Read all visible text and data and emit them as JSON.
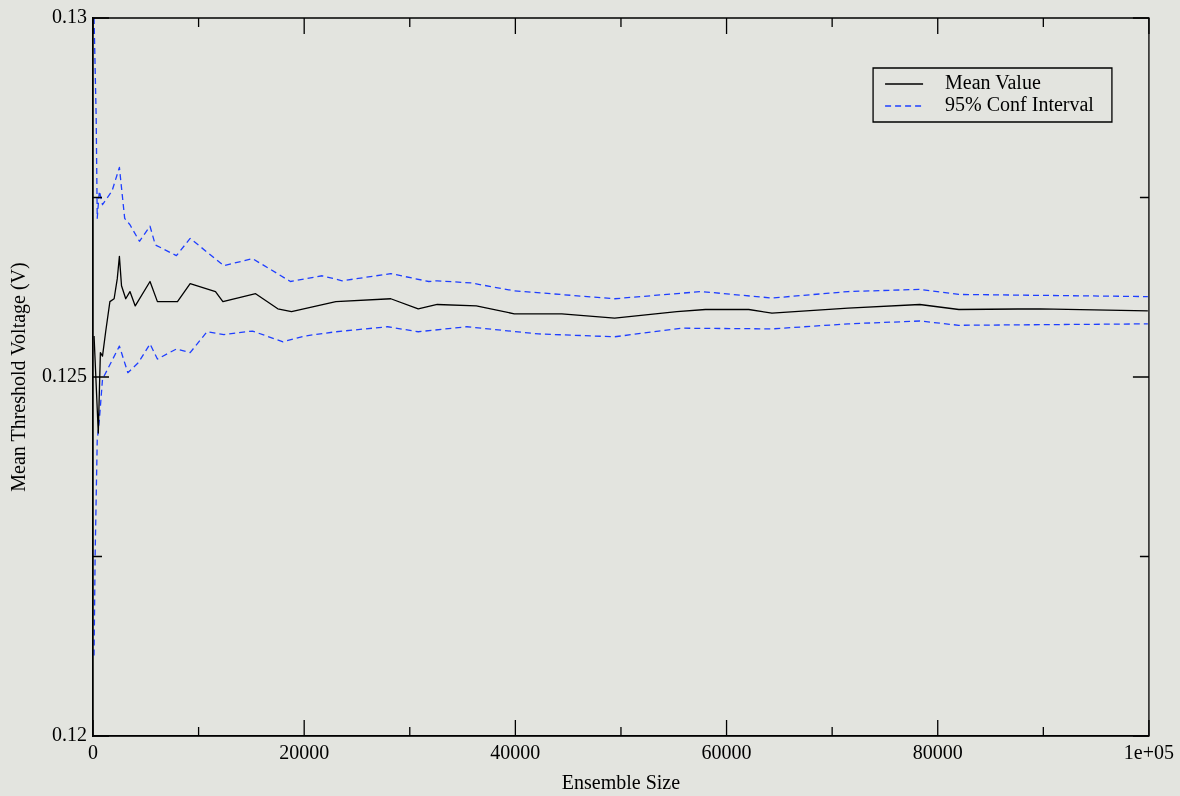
{
  "chart_data": {
    "type": "line",
    "xlabel": "Ensemble Size",
    "ylabel": "Mean Threshold Voltage (V)",
    "xlim": [
      0,
      100000
    ],
    "ylim": [
      0.12,
      0.13
    ],
    "xticks": [
      0,
      {
        "value": 10000,
        "label": null
      },
      20000,
      {
        "value": 30000,
        "label": null
      },
      40000,
      {
        "value": 50000,
        "label": null
      },
      60000,
      {
        "value": 70000,
        "label": null
      },
      80000,
      {
        "value": 90000,
        "label": null
      },
      {
        "value": 100000,
        "label": "1e+05"
      }
    ],
    "yticks": [
      0.12,
      {
        "value": 0.1225,
        "label": null
      },
      0.125,
      {
        "value": 0.1275,
        "label": null
      },
      0.13
    ],
    "grid": false,
    "legend": "top right",
    "marker": "none",
    "series": [
      {
        "name": "Mean Value",
        "color": "#000000",
        "line_style": "solid",
        "x": [
          100,
          500,
          700,
          900,
          1200,
          1600,
          2000,
          2300,
          2500,
          2700,
          3100,
          3500,
          4000,
          5400,
          6100,
          8000,
          9200,
          11600,
          12300,
          15400,
          17500,
          18800,
          23000,
          28200,
          30800,
          32600,
          36300,
          39900,
          44400,
          49400,
          55300,
          58000,
          62100,
          64300,
          71500,
          78300,
          82000,
          89700,
          99900
        ],
        "values": [
          0.12557,
          0.12422,
          0.12534,
          0.12529,
          0.12563,
          0.12605,
          0.12609,
          0.12637,
          0.12668,
          0.12627,
          0.12609,
          0.12619,
          0.12599,
          0.12633,
          0.12605,
          0.12605,
          0.1263,
          0.12619,
          0.12605,
          0.12616,
          0.12595,
          0.12591,
          0.12605,
          0.12609,
          0.12595,
          0.12601,
          0.12599,
          0.12588,
          0.12588,
          0.12582,
          0.12591,
          0.12594,
          0.12594,
          0.12589,
          0.12596,
          0.12601,
          0.12594,
          0.12595,
          0.12592
        ]
      },
      {
        "name": "95% Conf Interval",
        "color": "#1f3fff",
        "line_style": "dashed",
        "x": [
          100,
          300,
          400,
          600,
          900,
          1800,
          2500,
          3000,
          3500,
          4400,
          5400,
          5900,
          7900,
          9200,
          12400,
          15100,
          18700,
          21700,
          23600,
          28200,
          31800,
          32600,
          35800,
          39900,
          49400,
          57600,
          64300,
          71500,
          78300,
          82000,
          99900
        ],
        "values": [
          0.13,
          0.12862,
          0.12721,
          0.12759,
          0.1274,
          0.12759,
          0.12792,
          0.12721,
          0.12712,
          0.12689,
          0.1271,
          0.12684,
          0.12669,
          0.12693,
          0.12655,
          0.12665,
          0.12633,
          0.12641,
          0.12634,
          0.12644,
          0.12633,
          0.12634,
          0.12631,
          0.1262,
          0.12609,
          0.12619,
          0.1261,
          0.12619,
          0.12622,
          0.12615,
          0.12612
        ]
      },
      {
        "color": "#1f3fff",
        "line_style": "dashed",
        "x": [
          100,
          200,
          400,
          600,
          900,
          2500,
          3300,
          4300,
          5400,
          6100,
          7900,
          9200,
          10800,
          12400,
          15100,
          18000,
          20000,
          23000,
          27900,
          30800,
          35400,
          42200,
          49400,
          55700,
          64300,
          71500,
          78300,
          82000,
          99900
        ],
        "values": [
          0.12112,
          0.1225,
          0.12412,
          0.1244,
          0.12497,
          0.12543,
          0.12506,
          0.1252,
          0.12546,
          0.12525,
          0.12539,
          0.12534,
          0.12563,
          0.12559,
          0.12564,
          0.12549,
          0.12557,
          0.12563,
          0.1257,
          0.12563,
          0.1257,
          0.1256,
          0.12556,
          0.12568,
          0.12567,
          0.12574,
          0.12578,
          0.12572,
          0.12574
        ]
      }
    ]
  }
}
